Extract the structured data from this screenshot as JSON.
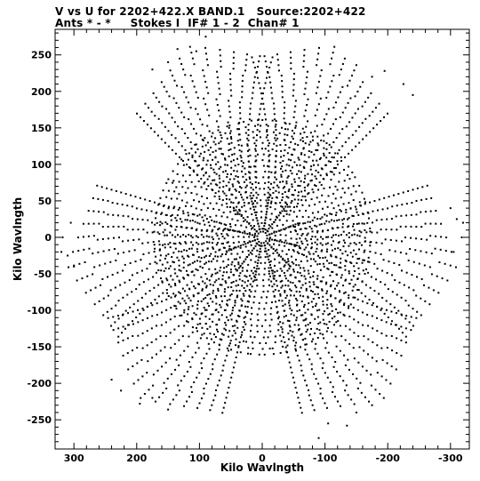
{
  "chart_data": {
    "type": "scatter",
    "title_line1": "V vs U for 2202+422.X BAND.1   Source:2202+422",
    "title_line2": "Ants * - *     Stokes I  IF# 1 - 2  Chan# 1",
    "xlabel": "Kilo Wavlngth",
    "ylabel": "Kilo Wavlngth",
    "xlim": [
      330,
      -330
    ],
    "ylim": [
      -290,
      285
    ],
    "x_ticks": [
      300,
      200,
      100,
      0,
      -100,
      -200,
      -300
    ],
    "y_ticks": [
      250,
      200,
      150,
      100,
      50,
      0,
      -50,
      -100,
      -150,
      -200,
      -250
    ],
    "grid": false,
    "point_color": "#000000",
    "pattern": {
      "description_points": "uv-coverage: 6-armed star of arcs, concentric elliptical tracks, symmetric about origin",
      "arm_angles_deg": [
        0,
        60,
        120,
        180,
        240,
        300
      ],
      "tip_points": [
        [
          90,
          275
        ],
        [
          105,
          255
        ],
        [
          135,
          258
        ],
        [
          150,
          240
        ],
        [
          175,
          230
        ],
        [
          -150,
          236
        ],
        [
          -175,
          220
        ],
        [
          -195,
          228
        ],
        [
          -225,
          210
        ],
        [
          -240,
          195
        ],
        [
          -300,
          40
        ],
        [
          -310,
          25
        ],
        [
          -320,
          20
        ],
        [
          -318,
          0
        ],
        [
          -305,
          -20
        ],
        [
          -90,
          -275
        ],
        [
          -105,
          -255
        ],
        [
          -135,
          -258
        ],
        [
          -150,
          -240
        ],
        [
          -175,
          -230
        ],
        [
          150,
          -236
        ],
        [
          175,
          -220
        ],
        [
          195,
          -228
        ],
        [
          225,
          -210
        ],
        [
          240,
          -195
        ],
        [
          300,
          -40
        ],
        [
          310,
          -25
        ],
        [
          320,
          -20
        ],
        [
          318,
          0
        ],
        [
          305,
          20
        ]
      ]
    }
  }
}
